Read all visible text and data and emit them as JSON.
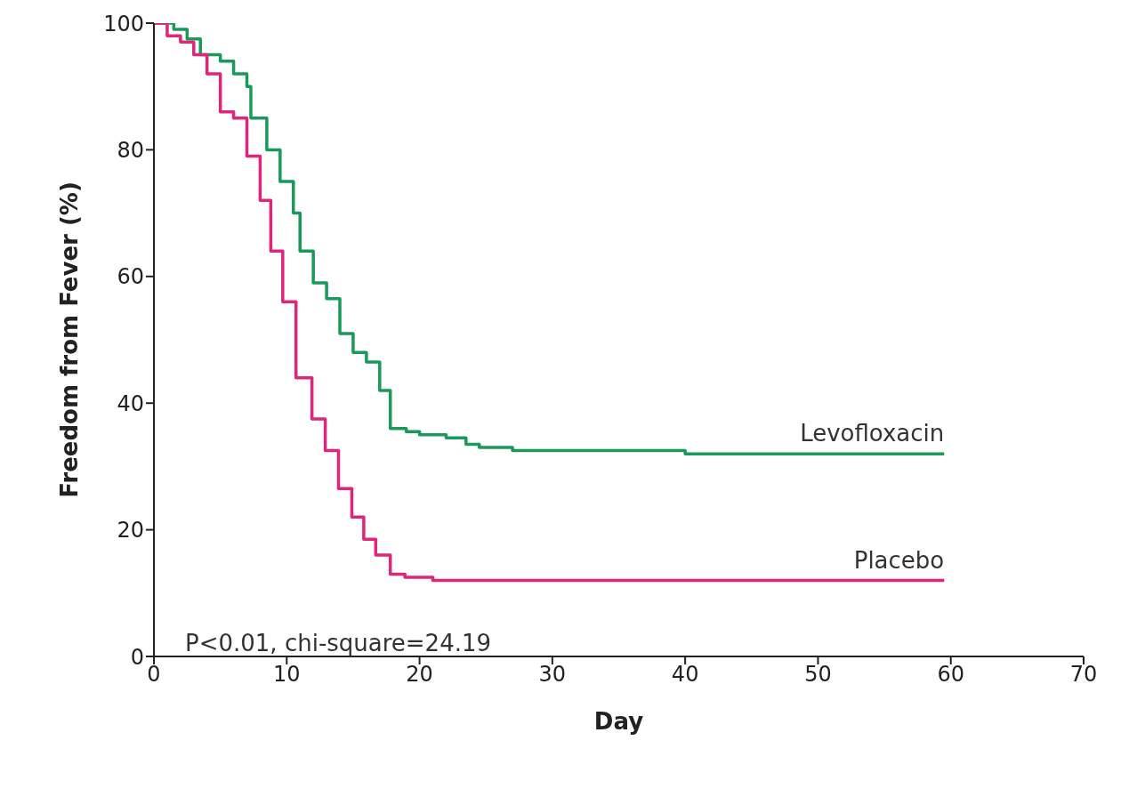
{
  "chart_data": {
    "type": "step",
    "xlabel": "Day",
    "ylabel": "Freedom from Fever (%)",
    "xlim": [
      0,
      70
    ],
    "xticks": [
      0,
      10,
      20,
      30,
      40,
      50,
      60,
      70
    ],
    "ylim": [
      0,
      100
    ],
    "yticks": [
      0,
      20,
      40,
      60,
      80,
      100
    ],
    "marker": "none",
    "line_style": "solid",
    "annotations": [
      "P<0.01, chi-square=24.19"
    ],
    "series": [
      {
        "name": "Levofloxacin",
        "color": "#1a9a5a",
        "x": [
          0,
          1.5,
          2.5,
          3.5,
          5,
          6,
          7,
          7.3,
          8.5,
          9.5,
          10.5,
          11,
          12,
          13,
          14,
          15,
          16,
          17,
          17.8,
          19,
          20,
          22,
          23.5,
          24.5,
          27,
          40,
          59.5
        ],
        "values": [
          100,
          99,
          97.5,
          95,
          94,
          92,
          90,
          85,
          80,
          75,
          70,
          64,
          59,
          56.5,
          51,
          48,
          46.5,
          42,
          36,
          35.5,
          35,
          34.5,
          33.5,
          33,
          32.5,
          32,
          32
        ]
      },
      {
        "name": "Placebo",
        "color": "#e0267a",
        "x": [
          0,
          1,
          2,
          3,
          4,
          5,
          6,
          7,
          8,
          8.8,
          9.7,
          10.7,
          11.9,
          12.9,
          13.9,
          14.9,
          15.8,
          16.7,
          17.8,
          18.9,
          21,
          59.5
        ],
        "values": [
          100,
          98,
          97,
          95,
          92,
          86,
          85,
          79,
          72,
          64,
          56,
          44,
          37.5,
          32.5,
          26.5,
          22,
          18.5,
          16,
          13,
          12.5,
          12,
          12
        ]
      }
    ]
  }
}
